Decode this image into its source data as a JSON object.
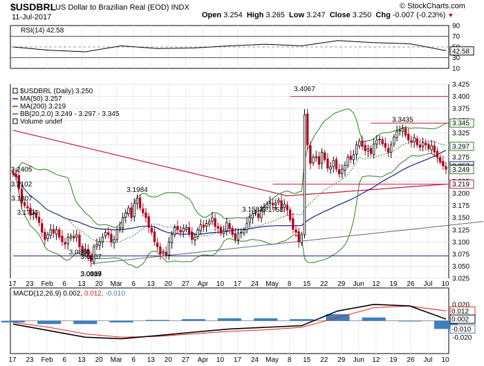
{
  "header": {
    "symbol": "$USDBRL",
    "name": "US Dollar to Brazilian Real (EOD)",
    "exchange": "INDX",
    "date": "11-Jul-2017",
    "open_label": "Open",
    "open": "3.254",
    "high_label": "High",
    "high": "3.265",
    "low_label": "Low",
    "low": "3.247",
    "close_label": "Close",
    "close": "3.250",
    "chg_label": "Chg",
    "chg": "-0.007 (-0.23%)",
    "brand": "© StockCharts.com"
  },
  "colors": {
    "up": "#000000",
    "down": "#b00020",
    "ma50": "#1a1a8c",
    "ma200": "#c0143c",
    "bb": "#2e7d1e",
    "macd_line": "#000000",
    "macd_signal": "#e02020",
    "histogram": "#3f7fc0"
  },
  "chart_data": [
    {
      "type": "line",
      "panel": "RSI",
      "title": "RSI(14) 42.58",
      "ylim": [
        10,
        90
      ],
      "yticks": [
        90,
        70,
        50,
        30,
        10
      ],
      "reference_lines": [
        70,
        50,
        30
      ],
      "last_label": "42.58",
      "x": [
        "Jan 17",
        "Feb 6",
        "Feb 20",
        "Mar 6",
        "Mar 20",
        "Apr 3",
        "Apr 17",
        "May 1",
        "May 15",
        "May 29",
        "Jun 12",
        "Jun 26",
        "Jul 10"
      ],
      "values": [
        50,
        44,
        41,
        52,
        47,
        48,
        52,
        55,
        52,
        62,
        58,
        56,
        43
      ]
    },
    {
      "type": "candlestick",
      "panel": "Price",
      "legend": [
        {
          "label": "$USDBRL (Daily) 3.250",
          "color": "#000000",
          "marker": "candle"
        },
        {
          "label": "MA(50) 3.257",
          "color": "#1a1a8c",
          "marker": "line"
        },
        {
          "label": "MA(200) 3.219",
          "color": "#c0143c",
          "marker": "line"
        },
        {
          "label": "BB(20,2.0) 3.249 - 3.297 - 3.345",
          "color": "#2e7d1e",
          "marker": "line"
        },
        {
          "label": "Volume undef",
          "color": "#000000",
          "marker": "box"
        }
      ],
      "ylim": [
        3.025,
        3.425
      ],
      "yticks": [
        "3.425",
        "3.400",
        "3.375",
        "3.350",
        "3.325",
        "3.300",
        "3.275",
        "3.250",
        "3.225",
        "3.200",
        "3.175",
        "3.150",
        "3.125",
        "3.100",
        "3.075",
        "3.050",
        "3.025"
      ],
      "xticks": [
        "17",
        "23",
        "Feb",
        "6",
        "13",
        "20",
        "Mar",
        "6",
        "13",
        "20",
        "27",
        "Apr",
        "10",
        "17",
        "24",
        "May",
        "8",
        "15",
        "22",
        "29",
        "Jun",
        "12",
        "19",
        "26",
        "Jul",
        "10"
      ],
      "annotations": [
        {
          "text": "3.2405",
          "value": 3.2405
        },
        {
          "text": "3.0417",
          "value": 3.0417
        },
        {
          "text": "3.1984",
          "value": 3.1984
        },
        {
          "text": "3.0607",
          "value": 3.0607
        },
        {
          "text": "3.1758",
          "value": 3.1758
        },
        {
          "text": "3.1583",
          "value": 3.1583
        },
        {
          "text": "3.0035",
          "value": 3.0035
        },
        {
          "text": "3.1700",
          "value": 3.17
        },
        {
          "text": "3.0009",
          "value": 3.0009
        },
        {
          "text": "3.2102",
          "value": 3.2102
        },
        {
          "text": "3.4067",
          "value": 3.4067
        },
        {
          "text": "3.0880",
          "value": 3.088
        },
        {
          "text": "3.1807",
          "value": 3.1807
        },
        {
          "text": "3.3435",
          "value": 3.3435
        }
      ],
      "right_labels": [
        {
          "text": "3.345",
          "value": 3.345,
          "color": "#2e7d1e"
        },
        {
          "text": "3.297",
          "value": 3.297,
          "color": "#2e7d1e"
        },
        {
          "text": "3.257",
          "value": 3.257,
          "color": "#1a1a8c"
        },
        {
          "text": "3.250",
          "value": 3.25,
          "color": "#000000"
        },
        {
          "text": "3.249",
          "value": 3.249,
          "color": "#2e7d1e"
        },
        {
          "text": "3.219",
          "value": 3.219,
          "color": "#c0143c"
        }
      ],
      "horizontal_lines": [
        {
          "value": 3.4,
          "color": "#c0143c",
          "from_index": 96
        },
        {
          "value": 3.345,
          "color": "#c0143c",
          "from_index": 124
        },
        {
          "value": 3.219,
          "color": "#c0143c",
          "from_index": 90
        },
        {
          "value": 3.071,
          "color": "#1a1a8c",
          "from_index": 0
        }
      ],
      "trendline": {
        "from": {
          "index": 27,
          "value": 3.055
        },
        "to": {
          "index": 149,
          "value": 3.132
        }
      },
      "close": [
        3.24,
        3.235,
        3.21,
        3.18,
        3.175,
        3.17,
        3.155,
        3.16,
        3.15,
        3.14,
        3.12,
        3.105,
        3.115,
        3.125,
        3.118,
        3.125,
        3.11,
        3.1,
        3.095,
        3.11,
        3.112,
        3.108,
        3.115,
        3.09,
        3.078,
        3.085,
        3.07,
        3.06,
        3.09,
        3.095,
        3.1,
        3.11,
        3.12,
        3.115,
        3.1,
        3.105,
        3.125,
        3.13,
        3.15,
        3.16,
        3.17,
        3.15,
        3.18,
        3.19,
        3.17,
        3.16,
        3.15,
        3.13,
        3.12,
        3.1,
        3.09,
        3.075,
        3.08,
        3.072,
        3.1,
        3.115,
        3.13,
        3.125,
        3.12,
        3.128,
        3.13,
        3.118,
        3.105,
        3.11,
        3.125,
        3.135,
        3.13,
        3.138,
        3.142,
        3.15,
        3.132,
        3.128,
        3.118,
        3.122,
        3.14,
        3.128,
        3.115,
        3.105,
        3.118,
        3.12,
        3.125,
        3.138,
        3.15,
        3.158,
        3.16,
        3.15,
        3.165,
        3.172,
        3.178,
        3.182,
        3.176,
        3.18,
        3.186,
        3.17,
        3.178,
        3.166,
        3.146,
        3.126,
        3.12,
        3.1,
        3.115,
        3.362,
        3.3,
        3.262,
        3.275,
        3.276,
        3.26,
        3.285,
        3.27,
        3.252,
        3.255,
        3.268,
        3.25,
        3.24,
        3.25,
        3.258,
        3.275,
        3.27,
        3.28,
        3.3,
        3.308,
        3.297,
        3.288,
        3.292,
        3.282,
        3.302,
        3.31,
        3.312,
        3.302,
        3.295,
        3.285,
        3.3,
        3.316,
        3.328,
        3.33,
        3.334,
        3.32,
        3.31,
        3.305,
        3.315,
        3.3,
        3.295,
        3.305,
        3.3,
        3.292,
        3.298,
        3.285,
        3.275,
        3.265,
        3.257,
        3.25
      ]
    },
    {
      "type": "line",
      "panel": "MACD",
      "title": "MACD(12,26,9) 0.002, 0.012, -0.010",
      "series": [
        {
          "name": "MACD(12,26,9)",
          "value": "0.002"
        },
        {
          "name": "Signal",
          "value": "0.012"
        },
        {
          "name": "Histogram",
          "value": "-0.010"
        }
      ],
      "ylim": [
        -0.04,
        0.04
      ],
      "yticks": [
        "0.020",
        "0.000",
        "-0.020"
      ],
      "right_labels": [
        {
          "text": "0.012",
          "value": 0.012,
          "color": "#e02020"
        },
        {
          "text": "0.002",
          "value": 0.002,
          "color": "#000000"
        },
        {
          "text": "-0.010",
          "value": -0.01,
          "color": "#3f7fc0"
        }
      ],
      "x": [
        "Jan 17",
        "Feb 6",
        "Feb 20",
        "Mar 6",
        "Mar 20",
        "Apr 3",
        "Apr 17",
        "May 1",
        "May 15",
        "May 29",
        "Jun 12",
        "Jun 26",
        "Jul 10"
      ],
      "macd": [
        -0.004,
        -0.012,
        -0.02,
        -0.022,
        -0.018,
        -0.014,
        -0.01,
        -0.008,
        -0.006,
        0.012,
        0.02,
        0.018,
        0.002
      ],
      "signal": [
        -0.002,
        -0.008,
        -0.016,
        -0.02,
        -0.019,
        -0.016,
        -0.013,
        -0.011,
        -0.008,
        0.004,
        0.016,
        0.018,
        0.012
      ],
      "histogram": [
        -0.002,
        -0.004,
        -0.004,
        -0.002,
        0.001,
        0.002,
        0.003,
        0.003,
        0.002,
        0.008,
        0.004,
        0.0,
        -0.01
      ]
    }
  ]
}
